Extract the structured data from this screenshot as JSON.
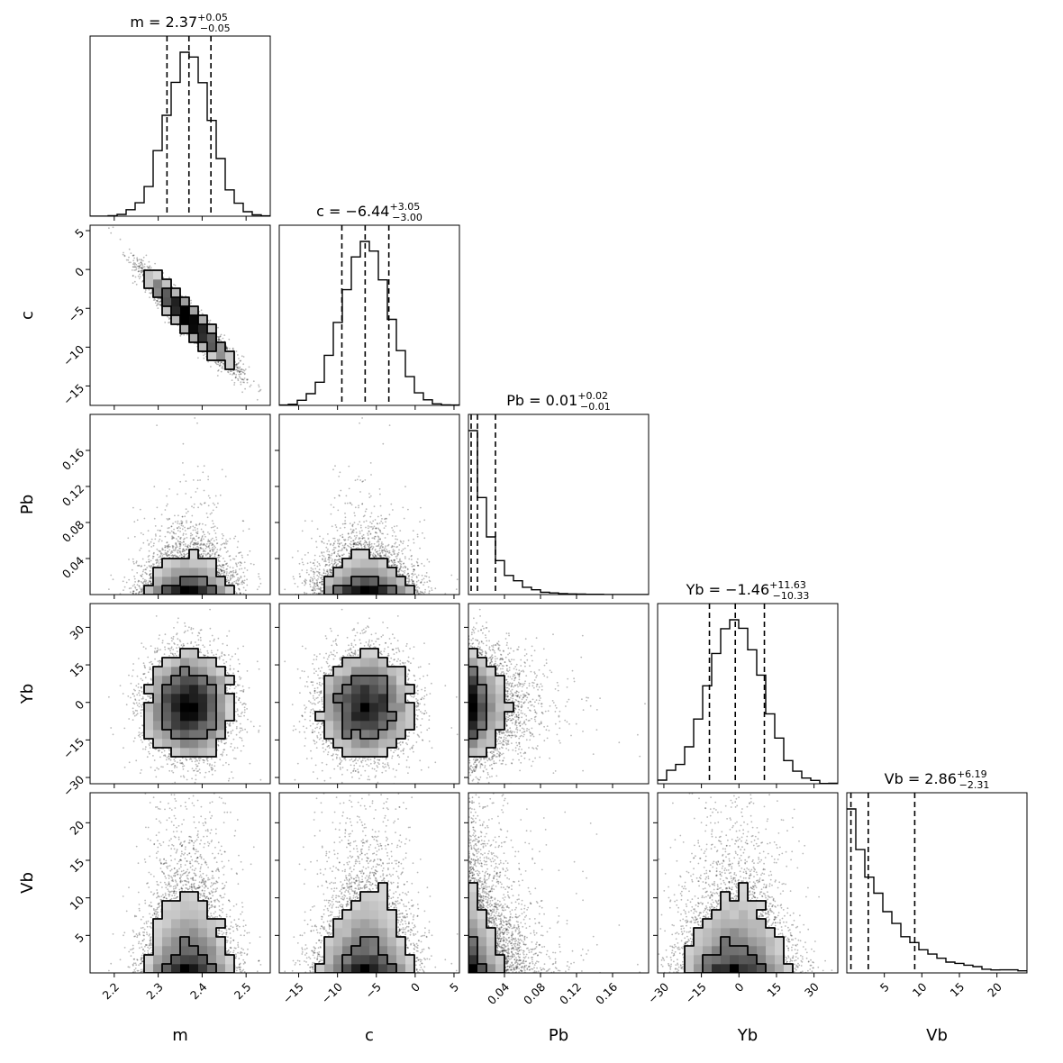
{
  "chart_data": {
    "type": "corner",
    "parameters": [
      "m",
      "c",
      "Pb",
      "Yb",
      "Vb"
    ],
    "ranges": {
      "m": [
        2.145,
        2.555
      ],
      "c": [
        -17.5,
        5.7
      ],
      "Pb": [
        0.0,
        0.2
      ],
      "Yb": [
        -32.5,
        39.5
      ],
      "Vb": [
        0.0,
        24.0
      ]
    },
    "ticks": {
      "m": [
        2.2,
        2.3,
        2.4,
        2.5
      ],
      "c": [
        -15,
        -10,
        -5,
        0,
        5
      ],
      "Pb": [
        0.04,
        0.08,
        0.12,
        0.16
      ],
      "Yb": [
        -30,
        -15,
        0,
        15,
        30
      ],
      "Vb": [
        5,
        10,
        15,
        20
      ]
    },
    "tick_labels": {
      "m": [
        "2.2",
        "2.3",
        "2.4",
        "2.5"
      ],
      "c": [
        "−15",
        "−10",
        "−5",
        "0",
        "5"
      ],
      "Pb": [
        "0.04",
        "0.08",
        "0.12",
        "0.16"
      ],
      "Yb": [
        "−30",
        "−15",
        "0",
        "15",
        "30"
      ],
      "Vb": [
        "5",
        "10",
        "15",
        "20"
      ]
    },
    "titles": [
      {
        "param": "m",
        "prefix": "m = 2.37",
        "plus": "+0.05",
        "minus": "−0.05"
      },
      {
        "param": "c",
        "prefix": "c = −6.44",
        "plus": "+3.05",
        "minus": "−3.00"
      },
      {
        "param": "Pb",
        "prefix": "Pb = 0.01",
        "plus": "+0.02",
        "minus": "−0.01"
      },
      {
        "param": "Yb",
        "prefix": "Yb = −1.46",
        "plus": "+11.63",
        "minus": "−10.33"
      },
      {
        "param": "Vb",
        "prefix": "Vb = 2.86",
        "plus": "+6.19",
        "minus": "−2.31"
      }
    ],
    "quantiles": {
      "m": [
        2.32,
        2.37,
        2.42
      ],
      "c": [
        -9.44,
        -6.44,
        -3.39
      ],
      "Pb": [
        0.003,
        0.01,
        0.03
      ],
      "Yb": [
        -11.79,
        -1.46,
        10.17
      ],
      "Vb": [
        0.55,
        2.86,
        9.05
      ]
    },
    "distributions": {
      "m": {
        "shape": "normal",
        "mean": 2.37,
        "sd": 0.05
      },
      "c": {
        "shape": "normal",
        "mean": -6.44,
        "sd": 3.02
      },
      "Pb": {
        "shape": "exponential",
        "scale": 0.02
      },
      "Yb": {
        "shape": "normal",
        "mean": -1.46,
        "sd": 11.0
      },
      "Vb": {
        "shape": "exponential",
        "scale": 5.0
      }
    },
    "correlation": {
      "m_c": -0.95
    },
    "histogram_bins": 20,
    "contour_levels": 2,
    "colors": {
      "ink": "#000000",
      "background": "#ffffff"
    }
  }
}
